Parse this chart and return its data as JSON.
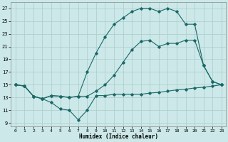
{
  "xlabel": "Humidex (Indice chaleur)",
  "background_color": "#cce8e8",
  "grid_color": "#aacccc",
  "line_color": "#1a6868",
  "xlim": [
    -0.5,
    23.5
  ],
  "ylim": [
    8.5,
    28.0
  ],
  "xticks": [
    0,
    1,
    2,
    3,
    4,
    5,
    6,
    7,
    8,
    9,
    10,
    11,
    12,
    13,
    14,
    15,
    16,
    17,
    18,
    19,
    20,
    21,
    22,
    23
  ],
  "yticks": [
    9,
    11,
    13,
    15,
    17,
    19,
    21,
    23,
    25,
    27
  ],
  "line1_x": [
    0,
    1,
    2,
    3,
    4,
    5,
    6,
    7,
    8,
    9,
    10,
    11,
    12,
    13,
    14,
    15,
    16,
    17,
    18,
    19,
    20,
    21,
    22,
    23
  ],
  "line1_y": [
    15,
    14.8,
    13.2,
    12.8,
    12.2,
    11.2,
    11.0,
    9.5,
    11.0,
    13.3,
    13.3,
    13.5,
    13.5,
    13.5,
    13.5,
    13.7,
    13.8,
    14.0,
    14.2,
    14.3,
    14.5,
    14.6,
    14.8,
    15.0
  ],
  "line2_x": [
    0,
    1,
    2,
    3,
    4,
    5,
    6,
    7,
    8,
    9,
    10,
    11,
    12,
    13,
    14,
    15,
    16,
    17,
    18,
    19,
    20,
    21,
    22,
    23
  ],
  "line2_y": [
    15,
    14.8,
    13.2,
    12.8,
    13.3,
    13.2,
    13.0,
    13.2,
    13.2,
    14.0,
    15.0,
    16.5,
    18.5,
    20.5,
    21.8,
    22.0,
    21.0,
    21.5,
    21.5,
    22.0,
    22.0,
    18.0,
    15.5,
    15.0
  ],
  "line3_x": [
    0,
    1,
    2,
    3,
    4,
    5,
    6,
    7,
    8,
    9,
    10,
    11,
    12,
    13,
    14,
    15,
    16,
    17,
    18,
    19,
    20,
    21,
    22,
    23
  ],
  "line3_y": [
    15,
    14.8,
    13.2,
    12.8,
    13.3,
    13.2,
    13.0,
    13.2,
    17.0,
    20.0,
    22.5,
    24.5,
    25.5,
    26.5,
    27.0,
    27.0,
    26.5,
    27.0,
    26.5,
    24.5,
    24.5,
    18.0,
    15.5,
    15.0
  ]
}
